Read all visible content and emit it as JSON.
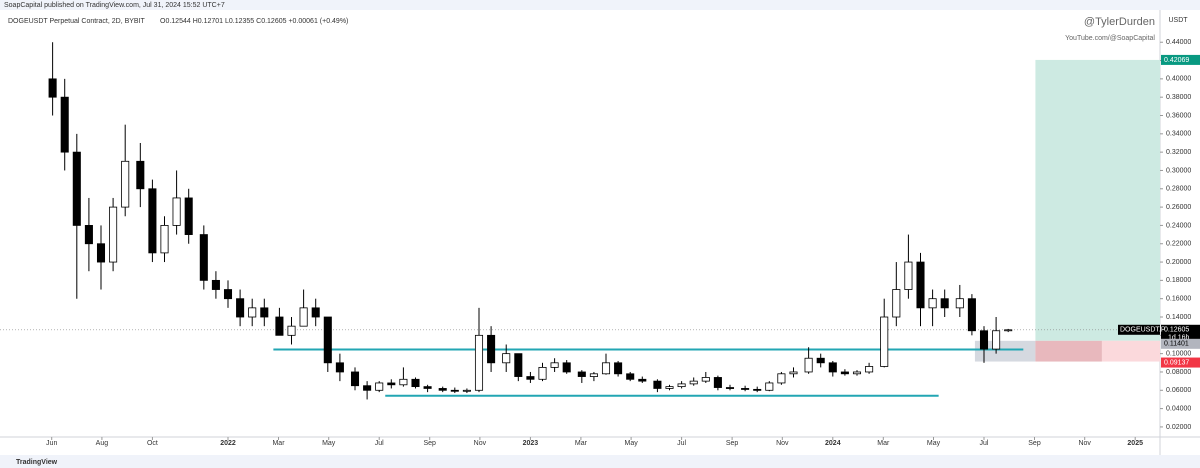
{
  "header": {
    "published": "SoapCapital published on TradingView.com, Jul 31, 2024 15:52 UTC+7",
    "footer": "TradingView"
  },
  "chart_data": {
    "type": "candlestick",
    "title": "DOGEUSDT Perpetual Contract, 2D, BYBIT",
    "subtitle": "O0.12544 H0.12701 L0.12355 C0.12605 +0.00061 (+0.49%)",
    "watermark": [
      "@TylerDurden",
      "YouTube.com/@SoapCapital"
    ],
    "y_axis_label": "USDT",
    "x": [
      2021.42,
      2021.46,
      2021.5,
      2021.54,
      2021.58,
      2021.62,
      2021.66,
      2021.71,
      2021.75,
      2021.79,
      2021.83,
      2021.87,
      2021.92,
      2021.96,
      2022.0,
      2022.04,
      2022.08,
      2022.12,
      2022.17,
      2022.21,
      2022.25,
      2022.29,
      2022.33,
      2022.37,
      2022.42,
      2022.46,
      2022.5,
      2022.54,
      2022.58,
      2022.62,
      2022.66,
      2022.71,
      2022.75,
      2022.79,
      2022.83,
      2022.87,
      2022.92,
      2022.96,
      2023.0,
      2023.04,
      2023.08,
      2023.12,
      2023.17,
      2023.21,
      2023.25,
      2023.29,
      2023.33,
      2023.37,
      2023.42,
      2023.46,
      2023.5,
      2023.54,
      2023.58,
      2023.62,
      2023.66,
      2023.71,
      2023.75,
      2023.79,
      2023.83,
      2023.87,
      2023.92,
      2023.96,
      2024.0,
      2024.04,
      2024.08,
      2024.12,
      2024.17,
      2024.21,
      2024.25,
      2024.29,
      2024.33,
      2024.37,
      2024.42,
      2024.46,
      2024.5,
      2024.54,
      2024.58
    ],
    "open": [
      0.4,
      0.38,
      0.32,
      0.24,
      0.22,
      0.2,
      0.26,
      0.31,
      0.28,
      0.21,
      0.24,
      0.27,
      0.23,
      0.18,
      0.17,
      0.16,
      0.14,
      0.15,
      0.14,
      0.12,
      0.13,
      0.15,
      0.14,
      0.09,
      0.08,
      0.065,
      0.06,
      0.068,
      0.066,
      0.072,
      0.064,
      0.062,
      0.06,
      0.059,
      0.06,
      0.12,
      0.09,
      0.1,
      0.075,
      0.072,
      0.085,
      0.09,
      0.08,
      0.075,
      0.078,
      0.09,
      0.078,
      0.072,
      0.07,
      0.062,
      0.064,
      0.067,
      0.07,
      0.074,
      0.063,
      0.062,
      0.061,
      0.06,
      0.068,
      0.078,
      0.08,
      0.095,
      0.09,
      0.08,
      0.078,
      0.08,
      0.086,
      0.14,
      0.17,
      0.2,
      0.15,
      0.16,
      0.15,
      0.16,
      0.125,
      0.105,
      0.12544
    ],
    "high": [
      0.44,
      0.4,
      0.34,
      0.27,
      0.24,
      0.27,
      0.35,
      0.33,
      0.29,
      0.25,
      0.3,
      0.28,
      0.24,
      0.19,
      0.18,
      0.17,
      0.16,
      0.16,
      0.15,
      0.14,
      0.17,
      0.16,
      0.14,
      0.1,
      0.085,
      0.07,
      0.07,
      0.072,
      0.085,
      0.074,
      0.066,
      0.064,
      0.063,
      0.062,
      0.15,
      0.13,
      0.11,
      0.1,
      0.08,
      0.09,
      0.095,
      0.093,
      0.082,
      0.08,
      0.1,
      0.092,
      0.08,
      0.075,
      0.072,
      0.066,
      0.07,
      0.074,
      0.08,
      0.076,
      0.066,
      0.065,
      0.064,
      0.07,
      0.08,
      0.085,
      0.107,
      0.1,
      0.092,
      0.083,
      0.082,
      0.09,
      0.16,
      0.2,
      0.23,
      0.21,
      0.17,
      0.17,
      0.175,
      0.165,
      0.13,
      0.14,
      0.12701
    ],
    "low": [
      0.36,
      0.3,
      0.16,
      0.19,
      0.17,
      0.19,
      0.25,
      0.26,
      0.2,
      0.2,
      0.23,
      0.22,
      0.17,
      0.16,
      0.15,
      0.13,
      0.13,
      0.13,
      0.12,
      0.11,
      0.13,
      0.13,
      0.08,
      0.07,
      0.06,
      0.05,
      0.058,
      0.062,
      0.064,
      0.062,
      0.058,
      0.058,
      0.057,
      0.057,
      0.058,
      0.08,
      0.08,
      0.07,
      0.068,
      0.07,
      0.08,
      0.078,
      0.068,
      0.07,
      0.077,
      0.075,
      0.07,
      0.068,
      0.058,
      0.06,
      0.062,
      0.065,
      0.068,
      0.06,
      0.06,
      0.059,
      0.058,
      0.059,
      0.066,
      0.074,
      0.078,
      0.085,
      0.075,
      0.076,
      0.076,
      0.078,
      0.085,
      0.13,
      0.16,
      0.13,
      0.13,
      0.14,
      0.14,
      0.12,
      0.09,
      0.1,
      0.12355
    ],
    "close": [
      0.38,
      0.32,
      0.24,
      0.22,
      0.2,
      0.26,
      0.31,
      0.28,
      0.21,
      0.24,
      0.27,
      0.23,
      0.18,
      0.17,
      0.16,
      0.14,
      0.15,
      0.14,
      0.12,
      0.13,
      0.15,
      0.14,
      0.09,
      0.08,
      0.065,
      0.06,
      0.068,
      0.066,
      0.072,
      0.064,
      0.062,
      0.06,
      0.059,
      0.06,
      0.12,
      0.09,
      0.1,
      0.075,
      0.072,
      0.085,
      0.09,
      0.08,
      0.075,
      0.078,
      0.09,
      0.078,
      0.072,
      0.07,
      0.062,
      0.064,
      0.067,
      0.07,
      0.074,
      0.063,
      0.062,
      0.061,
      0.06,
      0.068,
      0.078,
      0.08,
      0.095,
      0.09,
      0.08,
      0.078,
      0.08,
      0.086,
      0.14,
      0.17,
      0.2,
      0.15,
      0.16,
      0.15,
      0.16,
      0.125,
      0.105,
      0.125,
      0.12605
    ],
    "up_color": "#ffffff",
    "down_color": "#000000",
    "support_lines": [
      {
        "y": 0.1045,
        "x": [
          2022.15,
          2024.63
        ]
      },
      {
        "y": 0.054,
        "x": [
          2022.52,
          2024.35
        ]
      }
    ],
    "support_color": "#22a6b3",
    "position": {
      "x": [
        2024.47,
        2024.67,
        2024.89
      ],
      "target": 0.42069,
      "entry": 0.11401,
      "stop": 0.09137,
      "target_label": "0.42069",
      "entry_label": "0.11401",
      "stop_label": "0.09137"
    },
    "last_price": {
      "value": 0.12605,
      "label": "0.12605",
      "symbol": "DOGEUSDT.P",
      "countdown": "1d 16h"
    },
    "xlim": [
      2021.246,
      2025.082
    ],
    "xticks": [
      {
        "value": 2021.417,
        "label": "Jun"
      },
      {
        "value": 2021.583,
        "label": "Aug"
      },
      {
        "value": 2021.75,
        "label": "Oct"
      },
      {
        "value": 2022,
        "label": "2022"
      },
      {
        "value": 2022.167,
        "label": "Mar"
      },
      {
        "value": 2022.333,
        "label": "May"
      },
      {
        "value": 2022.5,
        "label": "Jul"
      },
      {
        "value": 2022.667,
        "label": "Sep"
      },
      {
        "value": 2022.833,
        "label": "Nov"
      },
      {
        "value": 2023,
        "label": "2023"
      },
      {
        "value": 2023.167,
        "label": "Mar"
      },
      {
        "value": 2023.333,
        "label": "May"
      },
      {
        "value": 2023.5,
        "label": "Jul"
      },
      {
        "value": 2023.667,
        "label": "Sep"
      },
      {
        "value": 2023.833,
        "label": "Nov"
      },
      {
        "value": 2024,
        "label": "2024"
      },
      {
        "value": 2024.167,
        "label": "Mar"
      },
      {
        "value": 2024.333,
        "label": "May"
      },
      {
        "value": 2024.5,
        "label": "Jul"
      },
      {
        "value": 2024.667,
        "label": "Sep"
      },
      {
        "value": 2024.833,
        "label": "Nov"
      },
      {
        "value": 2025,
        "label": "2025"
      }
    ],
    "ylim": [
      0.009,
      0.473
    ],
    "yticks": [
      {
        "value": 0.02,
        "label": "0.02000"
      },
      {
        "value": 0.04,
        "label": "0.04000"
      },
      {
        "value": 0.06,
        "label": "0.06000"
      },
      {
        "value": 0.08,
        "label": "0.08000"
      },
      {
        "value": 0.1,
        "label": "0.10000"
      },
      {
        "value": 0.12,
        "label": "0.12000"
      },
      {
        "value": 0.14,
        "label": "0.14000"
      },
      {
        "value": 0.16,
        "label": "0.16000"
      },
      {
        "value": 0.18,
        "label": "0.18000"
      },
      {
        "value": 0.2,
        "label": "0.20000"
      },
      {
        "value": 0.22,
        "label": "0.22000"
      },
      {
        "value": 0.24,
        "label": "0.24000"
      },
      {
        "value": 0.26,
        "label": "0.26000"
      },
      {
        "value": 0.28,
        "label": "0.28000"
      },
      {
        "value": 0.3,
        "label": "0.30000"
      },
      {
        "value": 0.32,
        "label": "0.32000"
      },
      {
        "value": 0.34,
        "label": "0.34000"
      },
      {
        "value": 0.36,
        "label": "0.36000"
      },
      {
        "value": 0.38,
        "label": "0.38000"
      },
      {
        "value": 0.4,
        "label": "0.40000"
      },
      {
        "value": 0.42,
        "label": "0.42000"
      },
      {
        "value": 0.44,
        "label": "0.44000"
      }
    ],
    "grid": false
  }
}
